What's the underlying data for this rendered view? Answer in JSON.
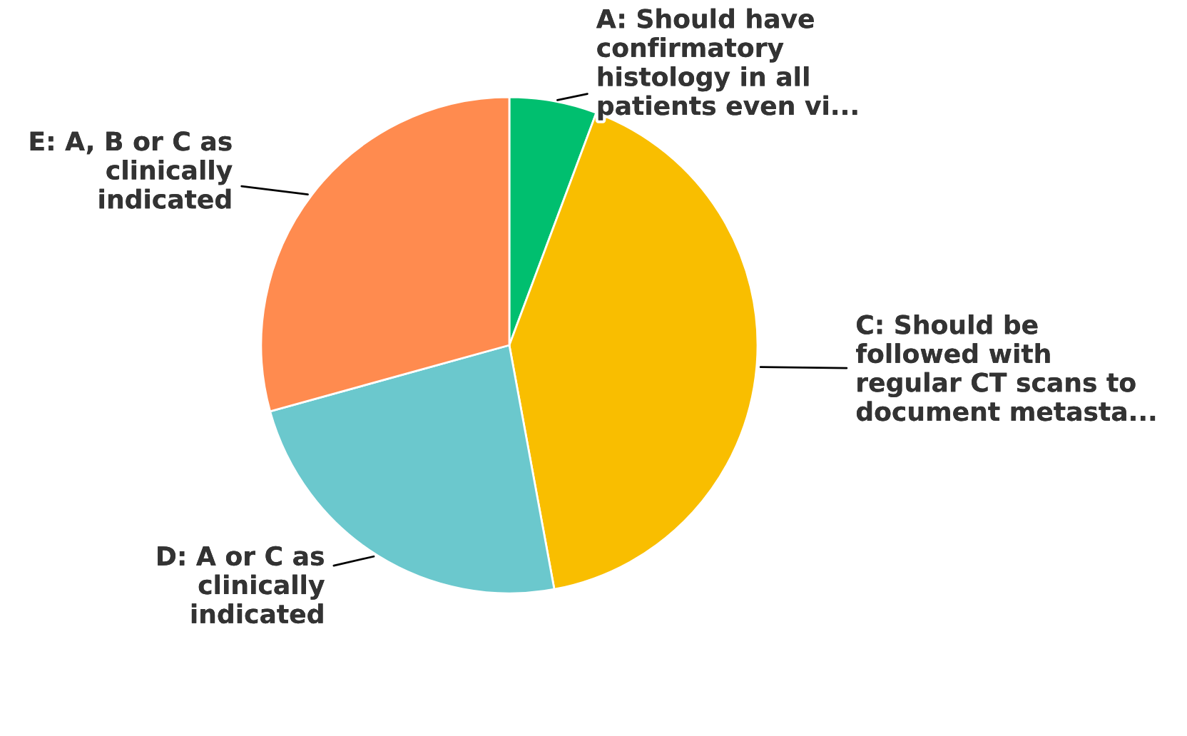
{
  "chart_data": {
    "type": "pie",
    "categories": [
      "A: Should have\nconfirmatory\nhistology in all\npatients even vi...",
      "C: Should be\nfollowed with\nregular CT scans to\ndocument metasta...",
      "D: A or C as\nclinically\nindicated",
      "E: A, B or C as\nclinically\nindicated"
    ],
    "values": [
      5.7,
      41.4,
      23.6,
      29.3
    ],
    "colors": [
      "#00bf6f",
      "#f9be00",
      "#6bc8cd",
      "#ff8b4f"
    ]
  }
}
